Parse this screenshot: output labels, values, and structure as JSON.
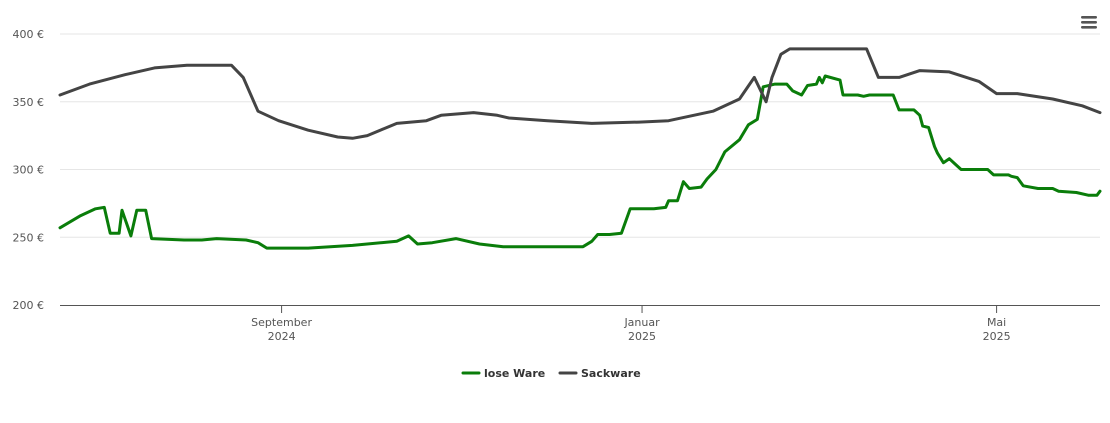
{
  "chart_data": {
    "type": "line",
    "title": "",
    "xlabel": "",
    "ylabel": "",
    "ylim": [
      200,
      400
    ],
    "y_ticks": [
      200,
      250,
      300,
      350,
      400
    ],
    "y_tick_labels": [
      "200 €",
      "250 €",
      "300 €",
      "350 €",
      "400 €"
    ],
    "xlim": [
      "2024-06-18",
      "2025-06-05"
    ],
    "x_ticks": [
      {
        "date": "2024-09-01",
        "line1": "September",
        "line2": "2024"
      },
      {
        "date": "2025-01-01",
        "line1": "Januar",
        "line2": "2025"
      },
      {
        "date": "2025-05-01",
        "line1": "Mai",
        "line2": "2025"
      }
    ],
    "grid": true,
    "legend_position": "bottom-center",
    "series": [
      {
        "name": "lose Ware",
        "color": "#0a7d0a",
        "points": [
          [
            "2024-06-18",
            257
          ],
          [
            "2024-06-25",
            266
          ],
          [
            "2024-06-30",
            271
          ],
          [
            "2024-07-03",
            272
          ],
          [
            "2024-07-05",
            253
          ],
          [
            "2024-07-08",
            253
          ],
          [
            "2024-07-09",
            270
          ],
          [
            "2024-07-12",
            251
          ],
          [
            "2024-07-14",
            270
          ],
          [
            "2024-07-17",
            270
          ],
          [
            "2024-07-19",
            249
          ],
          [
            "2024-07-30",
            248
          ],
          [
            "2024-08-05",
            248
          ],
          [
            "2024-08-10",
            249
          ],
          [
            "2024-08-20",
            248
          ],
          [
            "2024-08-24",
            246
          ],
          [
            "2024-08-27",
            242
          ],
          [
            "2024-09-10",
            242
          ],
          [
            "2024-09-25",
            244
          ],
          [
            "2024-10-10",
            247
          ],
          [
            "2024-10-14",
            251
          ],
          [
            "2024-10-17",
            245
          ],
          [
            "2024-10-22",
            246
          ],
          [
            "2024-10-30",
            249
          ],
          [
            "2024-11-07",
            245
          ],
          [
            "2024-11-15",
            243
          ],
          [
            "2024-12-05",
            243
          ],
          [
            "2024-12-12",
            243
          ],
          [
            "2024-12-15",
            247
          ],
          [
            "2024-12-17",
            252
          ],
          [
            "2024-12-21",
            252
          ],
          [
            "2024-12-25",
            253
          ],
          [
            "2024-12-28",
            271
          ],
          [
            "2025-01-05",
            271
          ],
          [
            "2025-01-09",
            272
          ],
          [
            "2025-01-10",
            277
          ],
          [
            "2025-01-13",
            277
          ],
          [
            "2025-01-15",
            291
          ],
          [
            "2025-01-17",
            286
          ],
          [
            "2025-01-21",
            287
          ],
          [
            "2025-01-23",
            293
          ],
          [
            "2025-01-26",
            300
          ],
          [
            "2025-01-29",
            313
          ],
          [
            "2025-02-03",
            322
          ],
          [
            "2025-02-06",
            333
          ],
          [
            "2025-02-09",
            337
          ],
          [
            "2025-02-11",
            361
          ],
          [
            "2025-02-15",
            363
          ],
          [
            "2025-02-19",
            363
          ],
          [
            "2025-02-21",
            358
          ],
          [
            "2025-02-24",
            355
          ],
          [
            "2025-02-26",
            362
          ],
          [
            "2025-03-01",
            363
          ],
          [
            "2025-03-02",
            368
          ],
          [
            "2025-03-03",
            364
          ],
          [
            "2025-03-04",
            369
          ],
          [
            "2025-03-09",
            366
          ],
          [
            "2025-03-10",
            355
          ],
          [
            "2025-03-15",
            355
          ],
          [
            "2025-03-17",
            354
          ],
          [
            "2025-03-19",
            355
          ],
          [
            "2025-03-27",
            355
          ],
          [
            "2025-03-29",
            344
          ],
          [
            "2025-04-03",
            344
          ],
          [
            "2025-04-05",
            340
          ],
          [
            "2025-04-06",
            332
          ],
          [
            "2025-04-08",
            331
          ],
          [
            "2025-04-10",
            317
          ],
          [
            "2025-04-11",
            312
          ],
          [
            "2025-04-13",
            305
          ],
          [
            "2025-04-15",
            308
          ],
          [
            "2025-04-17",
            304
          ],
          [
            "2025-04-19",
            300
          ],
          [
            "2025-04-28",
            300
          ],
          [
            "2025-04-30",
            296
          ],
          [
            "2025-05-05",
            296
          ],
          [
            "2025-05-06",
            295
          ],
          [
            "2025-05-08",
            294
          ],
          [
            "2025-05-10",
            288
          ],
          [
            "2025-05-15",
            286
          ],
          [
            "2025-05-20",
            286
          ],
          [
            "2025-05-22",
            284
          ],
          [
            "2025-05-28",
            283
          ],
          [
            "2025-06-01",
            281
          ],
          [
            "2025-06-04",
            281
          ],
          [
            "2025-06-05",
            284
          ]
        ]
      },
      {
        "name": "Sackware",
        "color": "#444444",
        "points": [
          [
            "2024-06-18",
            355
          ],
          [
            "2024-06-28",
            363
          ],
          [
            "2024-07-10",
            370
          ],
          [
            "2024-07-20",
            375
          ],
          [
            "2024-07-31",
            377
          ],
          [
            "2024-08-05",
            377
          ],
          [
            "2024-08-15",
            377
          ],
          [
            "2024-08-19",
            368
          ],
          [
            "2024-08-24",
            343
          ],
          [
            "2024-08-31",
            336
          ],
          [
            "2024-09-10",
            329
          ],
          [
            "2024-09-20",
            324
          ],
          [
            "2024-09-25",
            323
          ],
          [
            "2024-09-30",
            325
          ],
          [
            "2024-10-10",
            334
          ],
          [
            "2024-10-20",
            336
          ],
          [
            "2024-10-25",
            340
          ],
          [
            "2024-11-05",
            342
          ],
          [
            "2024-11-13",
            340
          ],
          [
            "2024-11-17",
            338
          ],
          [
            "2024-11-30",
            336
          ],
          [
            "2024-12-15",
            334
          ],
          [
            "2024-12-31",
            335
          ],
          [
            "2025-01-10",
            336
          ],
          [
            "2025-01-25",
            343
          ],
          [
            "2025-02-03",
            352
          ],
          [
            "2025-02-08",
            368
          ],
          [
            "2025-02-12",
            350
          ],
          [
            "2025-02-14",
            368
          ],
          [
            "2025-02-17",
            385
          ],
          [
            "2025-02-20",
            389
          ],
          [
            "2025-03-05",
            389
          ],
          [
            "2025-03-14",
            389
          ],
          [
            "2025-03-18",
            389
          ],
          [
            "2025-03-22",
            368
          ],
          [
            "2025-03-29",
            368
          ],
          [
            "2025-04-05",
            373
          ],
          [
            "2025-04-15",
            372
          ],
          [
            "2025-04-25",
            365
          ],
          [
            "2025-05-01",
            356
          ],
          [
            "2025-05-08",
            356
          ],
          [
            "2025-05-20",
            352
          ],
          [
            "2025-05-30",
            347
          ],
          [
            "2025-06-05",
            342
          ]
        ]
      }
    ]
  },
  "menu_icon": "hamburger-menu-icon"
}
